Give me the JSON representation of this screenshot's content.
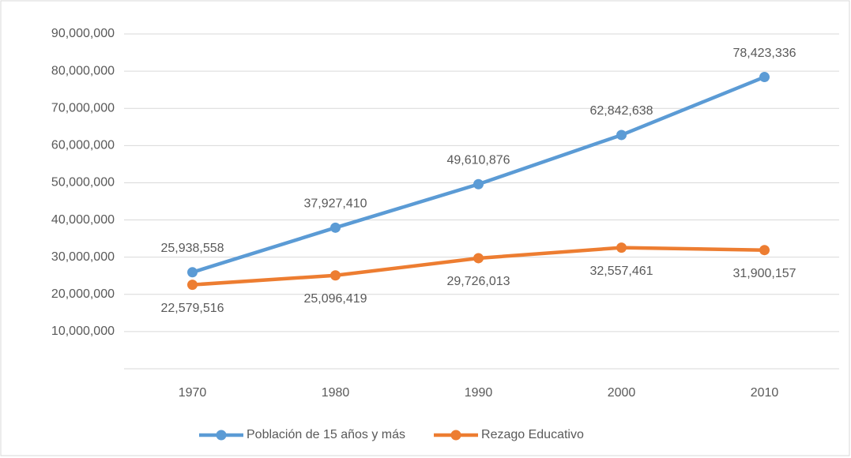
{
  "chart_data": {
    "type": "line",
    "categories": [
      "1970",
      "1980",
      "1990",
      "2000",
      "2010"
    ],
    "series": [
      {
        "name": "Población de 15 años y más",
        "color": "#5b9bd5",
        "values": [
          25938558,
          37927410,
          49610876,
          62842638,
          78423336
        ],
        "value_labels": [
          "25,938,558",
          "37,927,410",
          "49,610,876",
          "62,842,638",
          "78,423,336"
        ]
      },
      {
        "name": "Rezago Educativo",
        "color": "#ed7d31",
        "values": [
          22579516,
          25096419,
          29726013,
          32557461,
          31900157
        ],
        "value_labels": [
          "22,579,516",
          "25,096,419",
          "29,726,013",
          "32,557,461",
          "31,900,157"
        ]
      }
    ],
    "ylim": [
      0,
      90000000
    ],
    "yticks": [
      {
        "value": 10000000,
        "label": "10,000,000"
      },
      {
        "value": 20000000,
        "label": "20,000,000"
      },
      {
        "value": 30000000,
        "label": "30,000,000"
      },
      {
        "value": 40000000,
        "label": "40,000,000"
      },
      {
        "value": 50000000,
        "label": "50,000,000"
      },
      {
        "value": 60000000,
        "label": "60,000,000"
      },
      {
        "value": 70000000,
        "label": "70,000,000"
      },
      {
        "value": 80000000,
        "label": "80,000,000"
      },
      {
        "value": 90000000,
        "label": "90,000,000"
      }
    ],
    "grid": true,
    "legend": "bottom"
  }
}
